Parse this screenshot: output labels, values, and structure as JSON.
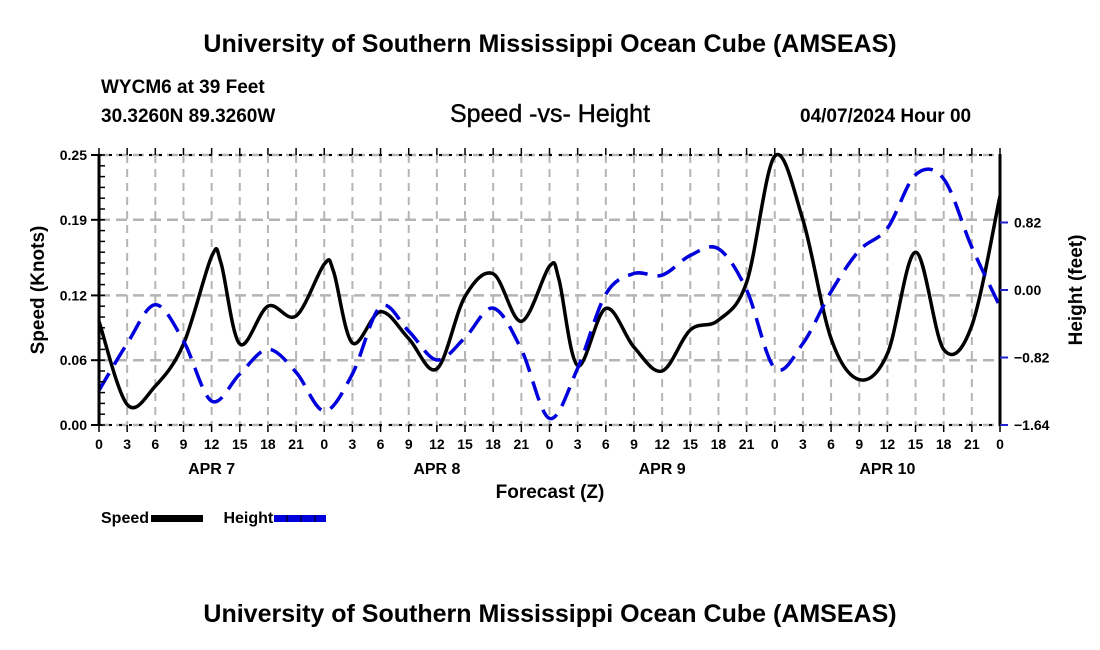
{
  "header": {
    "title": "University of Southern Mississippi Ocean Cube (AMSEAS)",
    "station": "WYCM6 at 39 Feet",
    "coordinates": "30.3260N  89.3260W",
    "subtitle": "Speed -vs- Height",
    "datetime": "04/07/2024 Hour 00"
  },
  "footer": {
    "title": "University of Southern Mississippi Ocean Cube (AMSEAS)"
  },
  "legend": {
    "items": [
      {
        "label": "Speed",
        "color": "#000000",
        "style": "solid"
      },
      {
        "label": "Height",
        "color": "#0000dd",
        "style": "dashed"
      }
    ]
  },
  "chart_data": {
    "type": "line",
    "title": "Speed -vs- Height",
    "xlabel": "Forecast (Z)",
    "ylabel": "Speed (Knots)",
    "y2label": "Height (feet)",
    "x_unit": "hours from 04/07/2024 00Z",
    "xlim": [
      0,
      96
    ],
    "ylim": [
      0,
      0.25
    ],
    "y2lim": [
      -1.64,
      1.64
    ],
    "grid": true,
    "legend_position": "bottom-left",
    "x_ticks": [
      0,
      3,
      6,
      9,
      12,
      15,
      18,
      21,
      24,
      27,
      30,
      33,
      36,
      39,
      42,
      45,
      48,
      51,
      54,
      57,
      60,
      63,
      66,
      69,
      72,
      75,
      78,
      81,
      84,
      87,
      90,
      93,
      96
    ],
    "x_tick_labels": [
      "0",
      "3",
      "6",
      "9",
      "12",
      "15",
      "18",
      "21",
      "0",
      "3",
      "6",
      "9",
      "12",
      "15",
      "18",
      "21",
      "0",
      "3",
      "6",
      "9",
      "12",
      "15",
      "18",
      "21",
      "0",
      "3",
      "6",
      "9",
      "12",
      "15",
      "18",
      "21",
      "0"
    ],
    "day_labels": [
      {
        "label": "APR 7",
        "hour": 12
      },
      {
        "label": "APR 8",
        "hour": 36
      },
      {
        "label": "APR 9",
        "hour": 60
      },
      {
        "label": "APR 10",
        "hour": 84
      }
    ],
    "y_ticks": [
      0.0,
      0.06,
      0.12,
      0.19,
      0.25
    ],
    "y_tick_labels": [
      "0.00",
      "0.06",
      "0.12",
      "0.19",
      "0.25"
    ],
    "y2_ticks": [
      -1.64,
      -0.82,
      0.0,
      0.82
    ],
    "y2_tick_labels": [
      "−1.64",
      "−0.82",
      "0.00",
      "0.82"
    ],
    "series": [
      {
        "name": "Speed",
        "axis": "left",
        "color": "#000000",
        "style": "solid",
        "x": [
          0,
          3,
          6,
          9,
          12,
          13,
          15,
          18,
          21,
          24,
          25,
          27,
          30,
          33,
          36,
          39,
          42,
          45,
          48,
          49,
          51,
          54,
          57,
          60,
          63,
          66,
          69,
          72,
          75,
          78,
          81,
          84,
          87,
          90,
          93,
          96
        ],
        "values": [
          0.096,
          0.019,
          0.036,
          0.075,
          0.156,
          0.15,
          0.075,
          0.11,
          0.101,
          0.149,
          0.142,
          0.076,
          0.105,
          0.08,
          0.052,
          0.119,
          0.14,
          0.096,
          0.147,
          0.135,
          0.055,
          0.108,
          0.072,
          0.05,
          0.088,
          0.097,
          0.132,
          0.249,
          0.19,
          0.08,
          0.042,
          0.066,
          0.16,
          0.07,
          0.092,
          0.212
        ]
      },
      {
        "name": "Height",
        "axis": "right",
        "color": "#0000dd",
        "style": "dashed",
        "x": [
          0,
          3,
          6,
          9,
          12,
          15,
          18,
          21,
          24,
          27,
          30,
          33,
          36,
          39,
          42,
          45,
          48,
          51,
          54,
          57,
          60,
          63,
          66,
          69,
          72,
          75,
          78,
          81,
          84,
          87,
          90,
          93,
          96
        ],
        "values": [
          -1.22,
          -0.65,
          -0.18,
          -0.62,
          -1.35,
          -1.02,
          -0.72,
          -1.0,
          -1.47,
          -1.02,
          -0.2,
          -0.5,
          -0.85,
          -0.58,
          -0.22,
          -0.72,
          -1.56,
          -0.95,
          -0.05,
          0.2,
          0.18,
          0.42,
          0.5,
          0.0,
          -0.95,
          -0.65,
          -0.02,
          0.48,
          0.75,
          1.4,
          1.35,
          0.52,
          -0.2
        ]
      }
    ]
  }
}
